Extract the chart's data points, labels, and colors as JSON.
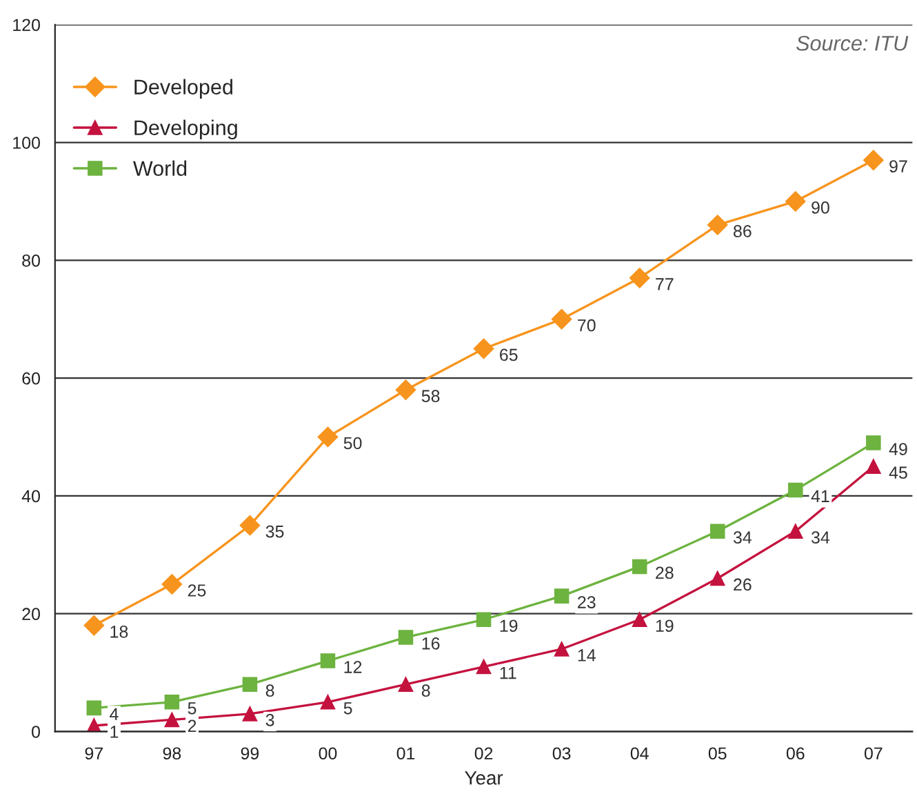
{
  "chart_data": {
    "type": "line",
    "xlabel": "Year",
    "categories": [
      "97",
      "98",
      "99",
      "00",
      "01",
      "02",
      "03",
      "04",
      "05",
      "06",
      "07"
    ],
    "series": [
      {
        "name": "Developed",
        "color": "#f7941d",
        "marker": "diamond",
        "values": [
          18,
          25,
          35,
          50,
          58,
          65,
          70,
          77,
          86,
          90,
          97
        ]
      },
      {
        "name": "Developing",
        "color": "#c4123e",
        "marker": "triangle",
        "values": [
          1,
          2,
          3,
          5,
          8,
          11,
          14,
          19,
          26,
          34,
          45
        ]
      },
      {
        "name": "World",
        "color": "#6db33f",
        "marker": "square",
        "values": [
          4,
          5,
          8,
          12,
          16,
          19,
          23,
          28,
          34,
          41,
          49
        ]
      }
    ],
    "ylim": [
      0,
      120
    ],
    "yticks": [
      0,
      20,
      40,
      60,
      80,
      100,
      120
    ],
    "grid": "y",
    "legend": "top left",
    "data_labels": true,
    "annotations": [
      "Source: ITU"
    ]
  }
}
